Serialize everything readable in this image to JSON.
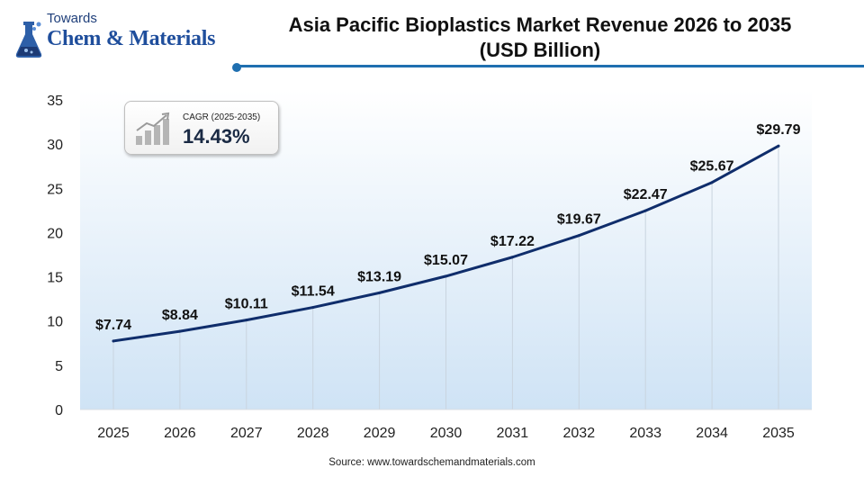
{
  "logo": {
    "towards": "Towards",
    "name": "Chem & Materials"
  },
  "title": {
    "line1": "Asia Pacific Bioplastics Market Revenue 2026 to 2035",
    "line2": "(USD Billion)"
  },
  "cagr": {
    "label": "CAGR (2025-2035)",
    "value": "14.43%"
  },
  "source": "Source: www.towardschemandmaterials.com",
  "colors": {
    "line": "#0f2d6b",
    "accent": "#1f6fb0",
    "plot_top": "#ffffff",
    "plot_bottom": "#cfe3f5"
  },
  "chart_data": {
    "type": "line",
    "title": "Asia Pacific Bioplastics Market Revenue 2026 to 2035 (USD Billion)",
    "xlabel": "",
    "ylabel": "",
    "categories": [
      "2025",
      "2026",
      "2027",
      "2028",
      "2029",
      "2030",
      "2031",
      "2032",
      "2033",
      "2034",
      "2035"
    ],
    "values": [
      7.74,
      8.84,
      10.11,
      11.54,
      13.19,
      15.07,
      17.22,
      19.67,
      22.47,
      25.67,
      29.79
    ],
    "data_labels": [
      "$7.74",
      "$8.84",
      "$10.11",
      "$11.54",
      "$13.19",
      "$15.07",
      "$17.22",
      "$19.67",
      "$22.47",
      "$25.67",
      "$29.79"
    ],
    "yticks": [
      0,
      5,
      10,
      15,
      20,
      25,
      30,
      35
    ],
    "ylim": [
      0,
      35
    ],
    "grid": "vertical",
    "legend": "none"
  }
}
